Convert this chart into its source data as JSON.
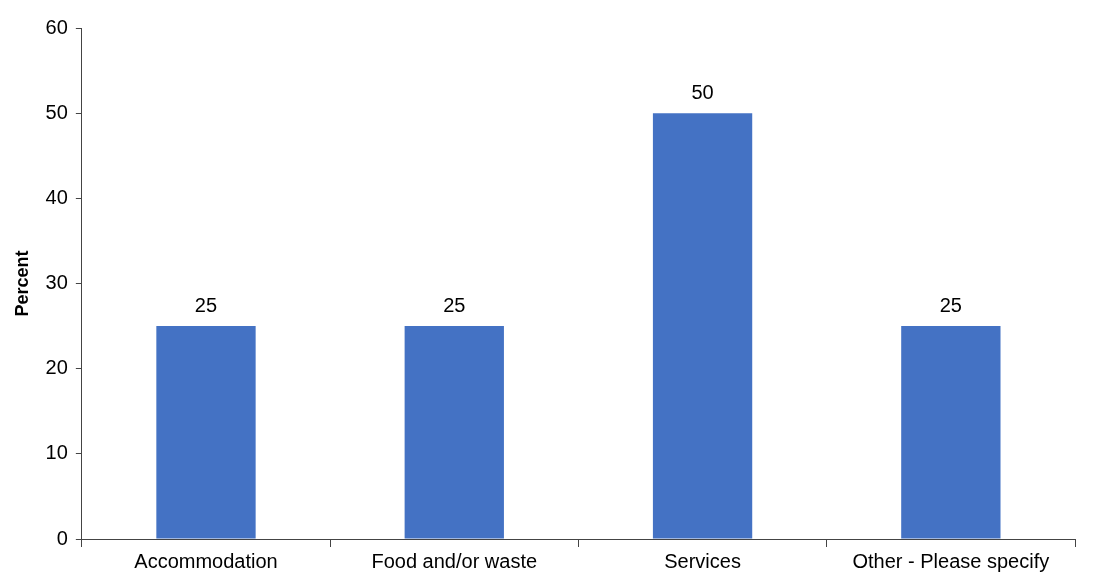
{
  "chart_data": {
    "type": "bar",
    "ylabel": "Percent",
    "categories": [
      "Accommodation",
      "Food and/or waste",
      "Services",
      "Other - Please specify"
    ],
    "values": [
      25,
      25,
      50,
      25
    ],
    "color": "#4472c4",
    "ylim": [
      0,
      60
    ],
    "yticks": [
      0,
      10,
      20,
      30,
      40,
      50,
      60
    ],
    "grid": false,
    "legend": false,
    "data_labels": true
  }
}
